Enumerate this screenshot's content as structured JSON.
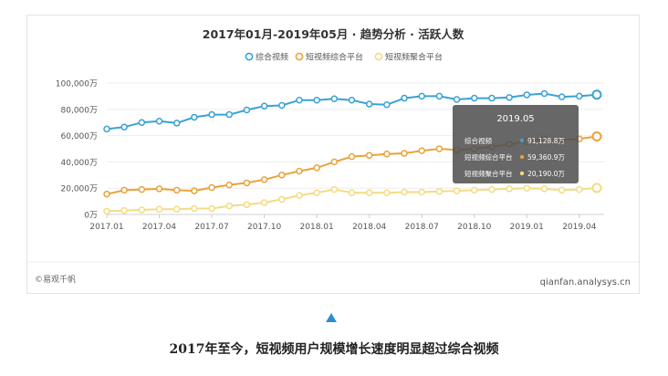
{
  "chart_data": {
    "type": "line",
    "title": "2017年01月-2019年05月 · 趋势分析 · 活跃人数",
    "x": [
      "2017.01",
      "2017.02",
      "2017.03",
      "2017.04",
      "2017.05",
      "2017.06",
      "2017.07",
      "2017.08",
      "2017.09",
      "2017.10",
      "2017.11",
      "2017.12",
      "2018.01",
      "2018.02",
      "2018.03",
      "2018.04",
      "2018.05",
      "2018.06",
      "2018.07",
      "2018.08",
      "2018.09",
      "2018.10",
      "2018.11",
      "2018.12",
      "2019.01",
      "2019.02",
      "2019.03",
      "2019.04",
      "2019.05"
    ],
    "xtick_labels": [
      "2017.01",
      "2017.04",
      "2017.07",
      "2017.10",
      "2018.01",
      "2018.04",
      "2018.07",
      "2018.10",
      "2019.01",
      "2019.04"
    ],
    "series": [
      {
        "name": "综合视频",
        "color": "#3aa1d6",
        "values": [
          65000,
          66500,
          70000,
          71000,
          69500,
          74000,
          76000,
          76000,
          79500,
          82500,
          83000,
          87000,
          87000,
          88000,
          87000,
          84000,
          83500,
          88500,
          90000,
          90000,
          87500,
          88500,
          88500,
          89000,
          91000,
          92000,
          89500,
          90000,
          91128.8
        ]
      },
      {
        "name": "短视频综合平台",
        "color": "#e9a33a",
        "values": [
          15500,
          18500,
          19000,
          19500,
          18500,
          18000,
          20500,
          22500,
          24000,
          26500,
          30000,
          33000,
          35500,
          40000,
          44000,
          45000,
          46000,
          46500,
          48500,
          50000,
          49000,
          50000,
          51500,
          53500,
          55500,
          57500,
          56500,
          57500,
          59360.9
        ]
      },
      {
        "name": "短视频聚合平台",
        "color": "#f2dc84",
        "values": [
          2500,
          3000,
          3500,
          4000,
          4000,
          4500,
          4500,
          6500,
          7500,
          9000,
          11500,
          14500,
          16500,
          19000,
          16500,
          16500,
          16500,
          17000,
          17000,
          17500,
          18000,
          18500,
          19000,
          19500,
          20000,
          19500,
          18500,
          19000,
          20190
        ]
      }
    ],
    "ylim": [
      0,
      100000
    ],
    "yticks": [
      0,
      20000,
      40000,
      60000,
      80000,
      100000
    ],
    "ytick_labels": [
      "0万",
      "20,000万",
      "40,000万",
      "60,000万",
      "80,000万",
      "100,000万"
    ],
    "legend_position": "top-center",
    "grid": true,
    "tooltip": {
      "title": "2019.05",
      "rows": [
        {
          "label": "综合视频",
          "value": "91,128.8万",
          "color": "#3aa1d6"
        },
        {
          "label": "短视频综合平台",
          "value": "59,360.9万",
          "color": "#e9a33a"
        },
        {
          "label": "短视频聚合平台",
          "value": "20,190.0万",
          "color": "#f2dc84"
        }
      ]
    }
  },
  "source_left": "©易观千帆",
  "source_right": "qianfan.analysys.cn",
  "caption": "2017年至今，短视频用户规模增长速度明显超过综合视频"
}
